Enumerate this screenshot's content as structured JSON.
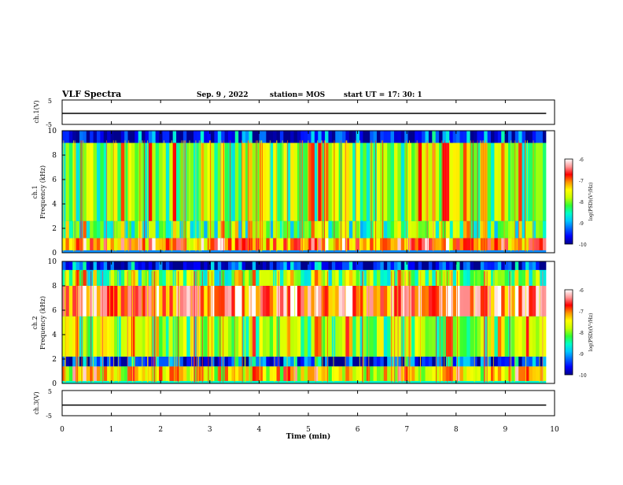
{
  "header": {
    "title": "VLF Spectra",
    "date": "Sep. 9 , 2022",
    "station": "station= MOS",
    "start": "start UT = 17: 30: 1"
  },
  "colormap": [
    "#00008c",
    "#0000ff",
    "#0064ff",
    "#00c8ff",
    "#00ffc8",
    "#32ff32",
    "#c8ff00",
    "#ffff00",
    "#ff9600",
    "#ff0000",
    "#ff9696",
    "#ffffff"
  ],
  "chart_data": [
    {
      "type": "line",
      "panel": "ch1-waveform",
      "ylabel": "ch.1(V)",
      "ylim": [
        -5,
        5
      ],
      "yticks": [
        "5",
        "-5"
      ],
      "x": [
        0,
        10
      ],
      "y": [
        -0.5,
        -0.5
      ],
      "xlim": [
        0,
        10
      ]
    },
    {
      "type": "heatmap",
      "panel": "ch1-spectrogram",
      "ylabel": "ch.1\nFrequency (kHz)",
      "ylim": [
        0,
        10
      ],
      "yticks": [
        "0",
        "2",
        "4",
        "6",
        "8",
        "10"
      ],
      "xlim": [
        0,
        10
      ],
      "data_end_min": 9.83,
      "colorbar": {
        "label": "log(PSD)(V²/Hz)",
        "range": [
          -10,
          -6
        ],
        "ticks": [
          "-6",
          "-7",
          "-8",
          "-9",
          "-10"
        ]
      },
      "profile": {
        "background_level": 0.22,
        "bands": [
          {
            "fmin": 0.2,
            "fmax": 1.2,
            "level": 0.72
          },
          {
            "fmin": 1.2,
            "fmax": 2.6,
            "level": 0.42
          },
          {
            "fmin": 2.6,
            "fmax": 9.0,
            "level": 0.48
          },
          {
            "fmin": 9.0,
            "fmax": 10.0,
            "level": 0.05
          }
        ],
        "seed": 11
      }
    },
    {
      "type": "heatmap",
      "panel": "ch2-spectrogram",
      "ylabel": "ch.2\nFrequency (kHz)",
      "ylim": [
        0,
        10
      ],
      "yticks": [
        "0",
        "2",
        "4",
        "6",
        "8",
        "10"
      ],
      "xlim": [
        0,
        10
      ],
      "data_end_min": 9.83,
      "colorbar": {
        "label": "log(PSD)(V²/Hz)",
        "range": [
          -10,
          -6
        ],
        "ticks": [
          "-6",
          "-7",
          "-8",
          "-9",
          "-10"
        ]
      },
      "profile": {
        "background_level": 0.35,
        "bands": [
          {
            "fmin": 0.2,
            "fmax": 1.4,
            "level": 0.62
          },
          {
            "fmin": 1.4,
            "fmax": 2.2,
            "level": 0.12
          },
          {
            "fmin": 2.2,
            "fmax": 5.5,
            "level": 0.5
          },
          {
            "fmin": 5.5,
            "fmax": 8.0,
            "level": 0.82
          },
          {
            "fmin": 8.0,
            "fmax": 9.3,
            "level": 0.45
          },
          {
            "fmin": 9.3,
            "fmax": 10.0,
            "level": 0.06
          }
        ],
        "seed": 29
      }
    },
    {
      "type": "line",
      "panel": "ch3-waveform",
      "ylabel": "ch.3(V)",
      "ylim": [
        -5,
        5
      ],
      "yticks": [
        "5",
        "-5"
      ],
      "x": [
        0,
        10
      ],
      "y": [
        -0.8,
        -0.8
      ],
      "xlim": [
        0,
        10
      ]
    }
  ],
  "xaxis": {
    "label": "Time (min)",
    "ticks": [
      "0",
      "1",
      "2",
      "3",
      "4",
      "5",
      "6",
      "7",
      "8",
      "9",
      "10"
    ]
  }
}
